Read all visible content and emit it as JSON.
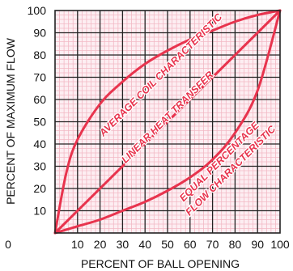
{
  "chart_data": {
    "type": "line",
    "title": "",
    "xlabel": "PERCENT OF BALL OPENING",
    "ylabel": "PERCENT OF MAXIMUM FLOW",
    "xlim": [
      0,
      100
    ],
    "ylim": [
      0,
      100
    ],
    "x_ticks": [
      "0",
      "10",
      "20",
      "30",
      "40",
      "50",
      "60",
      "70",
      "80",
      "90",
      "100"
    ],
    "y_ticks": [
      "10",
      "20",
      "30",
      "40",
      "50",
      "60",
      "70",
      "80",
      "90",
      "100"
    ],
    "grid": true,
    "colors": {
      "curve": "#e8344e",
      "minor_grid": "#f2b8c4",
      "major_grid": "#222222",
      "plot_bg": "#fdeef2"
    },
    "series": [
      {
        "name": "AVERAGE COIL CHARACTERISTIC",
        "x": [
          0,
          5,
          10,
          20,
          30,
          40,
          50,
          60,
          70,
          80,
          90,
          100
        ],
        "y": [
          0,
          27,
          42,
          58,
          68,
          76,
          82,
          87,
          91,
          95,
          98,
          100
        ]
      },
      {
        "name": "LINEAR HEAT TRANSFER",
        "x": [
          0,
          100
        ],
        "y": [
          0,
          100
        ]
      },
      {
        "name": "EQUAL PERCENTAGE FLOW CHARACTERISTIC",
        "x": [
          0,
          10,
          20,
          30,
          40,
          50,
          60,
          70,
          80,
          90,
          100
        ],
        "y": [
          0,
          3,
          6,
          10,
          14,
          19,
          25,
          33,
          45,
          64,
          100
        ]
      }
    ],
    "annotations": [
      {
        "text": "AVERAGE COIL CHARACTERISTIC",
        "x": 48,
        "y": 70,
        "angle": -45
      },
      {
        "text": "LINEAR HEAT TRANSFER",
        "x": 51,
        "y": 51,
        "angle": -45
      },
      {
        "text": "EQUAL PERCENTAGE",
        "x": 74,
        "y": 31,
        "angle": -45
      },
      {
        "text": "FLOW CHARACTERISTIC",
        "x": 79,
        "y": 27,
        "angle": -45
      }
    ]
  }
}
